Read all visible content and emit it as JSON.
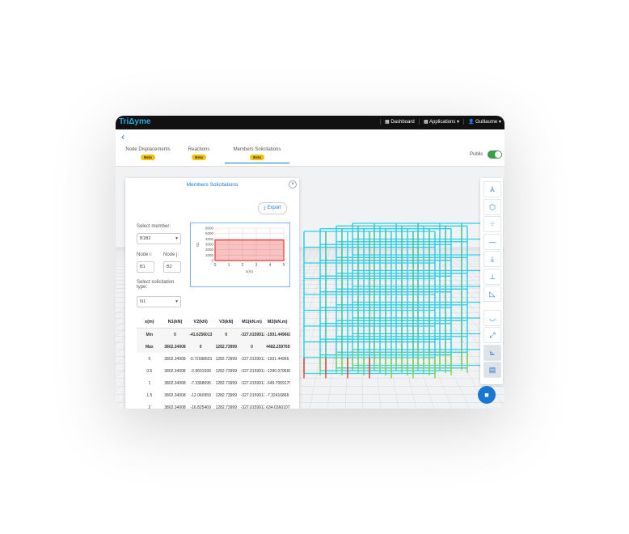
{
  "navbar": {
    "logo": "TriΔyme",
    "links": [
      "Dashboard",
      "Applications",
      "Guillaume"
    ]
  },
  "tabs": [
    {
      "label": "Node Displacements",
      "badge": "Beta"
    },
    {
      "label": "Reactions",
      "badge": "Beta"
    },
    {
      "label": "Members Solicitations",
      "badge": "Beta"
    }
  ],
  "public_label": "Public",
  "panel": {
    "title": "Members Solicitations",
    "export": "Export",
    "member_label": "Select member:",
    "member": "B1B2",
    "node_i_label": "Node i:",
    "node_j_label": "Node j:",
    "node_i": "B1",
    "node_j": "B2",
    "type_label": "Select solicitation type:",
    "type": "N1",
    "chart": {
      "type": "area",
      "x": [
        0,
        5
      ],
      "values": [
        3802.34,
        3802.34
      ],
      "color": "#e53935",
      "xlim": [
        0,
        5
      ],
      "xticks": [
        0,
        1,
        2,
        3,
        4,
        5
      ],
      "ylim": [
        0,
        6000
      ],
      "yticks": [
        0,
        1000,
        2000,
        3000,
        4000,
        5000,
        6000
      ],
      "xlabel": "x(m)",
      "ylabel": "N1",
      "grid": true
    },
    "table": {
      "header": [
        "x(m)",
        "N1(kN)",
        "V2(kN)",
        "V3(kN)",
        "M1(kN.m)",
        "M2(kN.m)"
      ],
      "rows": [
        [
          "Min",
          "0",
          "-41.6256013",
          "0",
          "-327.0159912",
          "-1931.449661"
        ],
        [
          "Max",
          "3802.34008",
          "0",
          "1282.73999",
          "0",
          "4482.2597659"
        ],
        [
          "0",
          "3802.34008",
          "-0.72098601",
          "1282.73999",
          "-327.0159912",
          "-1931.44966"
        ],
        [
          "0.5",
          "3802.34008",
          "-2.9601699",
          "1282.73999",
          "-327.0159912",
          "-1290.0796660"
        ],
        [
          "1",
          "3802.34008",
          "-7.3368695",
          "1282.73999",
          "-327.0159912",
          "-649.70591708"
        ],
        [
          "1.5",
          "3802.34008",
          "-12.060959",
          "1282.73999",
          "-327.0159912",
          "-7.32416866"
        ],
        [
          "2",
          "3802.34008",
          "-16.825469",
          "1282.73999",
          "-327.0159912",
          "634.0360107"
        ]
      ]
    }
  }
}
